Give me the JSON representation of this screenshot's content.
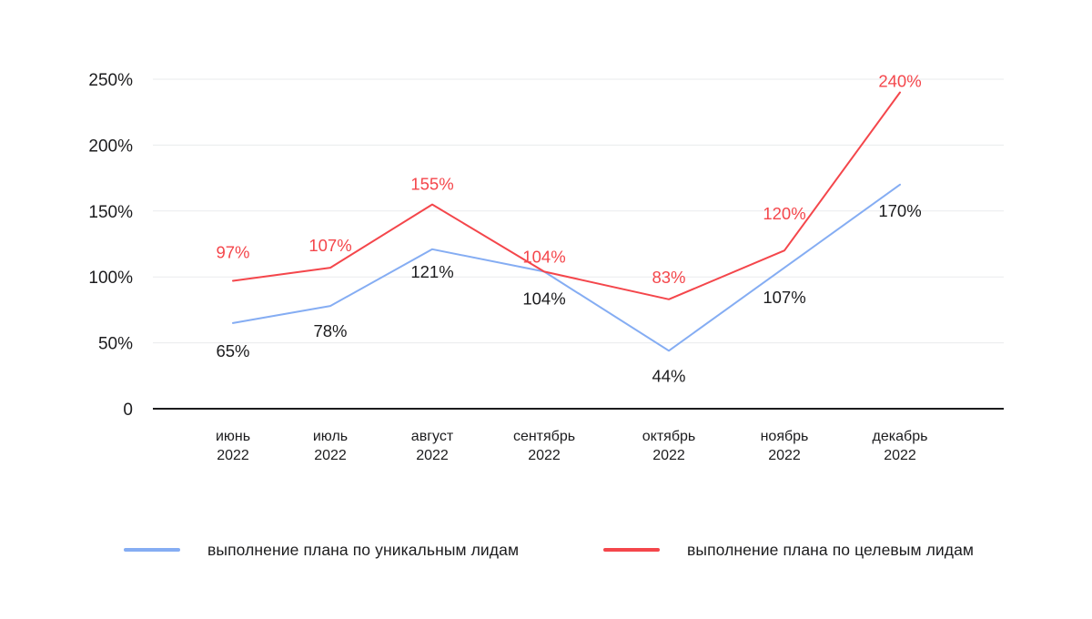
{
  "chart_data": {
    "type": "line",
    "title": "",
    "categories": [
      {
        "month": "июнь",
        "year": "2022"
      },
      {
        "month": "июль",
        "year": "2022"
      },
      {
        "month": "август",
        "year": "2022"
      },
      {
        "month": "сентябрь",
        "year": "2022"
      },
      {
        "month": "октябрь",
        "year": "2022"
      },
      {
        "month": "ноябрь",
        "year": "2022"
      },
      {
        "month": "декабрь",
        "year": "2022"
      }
    ],
    "y_axis": {
      "ticks": [
        {
          "value": 250,
          "label": "250%"
        },
        {
          "value": 200,
          "label": "200%"
        },
        {
          "value": 150,
          "label": "150%"
        },
        {
          "value": 100,
          "label": "100%"
        },
        {
          "value": 50,
          "label": "50%"
        },
        {
          "value": 0,
          "label": "0"
        }
      ],
      "range": [
        0,
        250
      ]
    },
    "grid": true,
    "legend_position": "bottom",
    "series": [
      {
        "name": "выполнение плана по уникальным лидам",
        "color": "#85ADF3",
        "label_color": "#1c1c1e",
        "label_position": "below",
        "values": [
          65,
          78,
          121,
          104,
          44,
          107,
          170
        ],
        "labels": [
          "65%",
          "78%",
          "121%",
          "104%",
          "44%",
          "107%",
          "170%"
        ]
      },
      {
        "name": "выполнение плана по целевым лидам",
        "color": "#F4464B",
        "label_color": "#F4464B",
        "label_position": "above",
        "values": [
          97,
          107,
          155,
          104,
          83,
          120,
          240
        ],
        "labels": [
          "97%",
          "107%",
          "155%",
          "104%",
          "83%",
          "120%",
          "240%"
        ]
      }
    ],
    "colors": {
      "grid_line": "#EAEBED",
      "axis_line": "#1c1c1e",
      "tick_text": "#1c1c1e"
    }
  }
}
